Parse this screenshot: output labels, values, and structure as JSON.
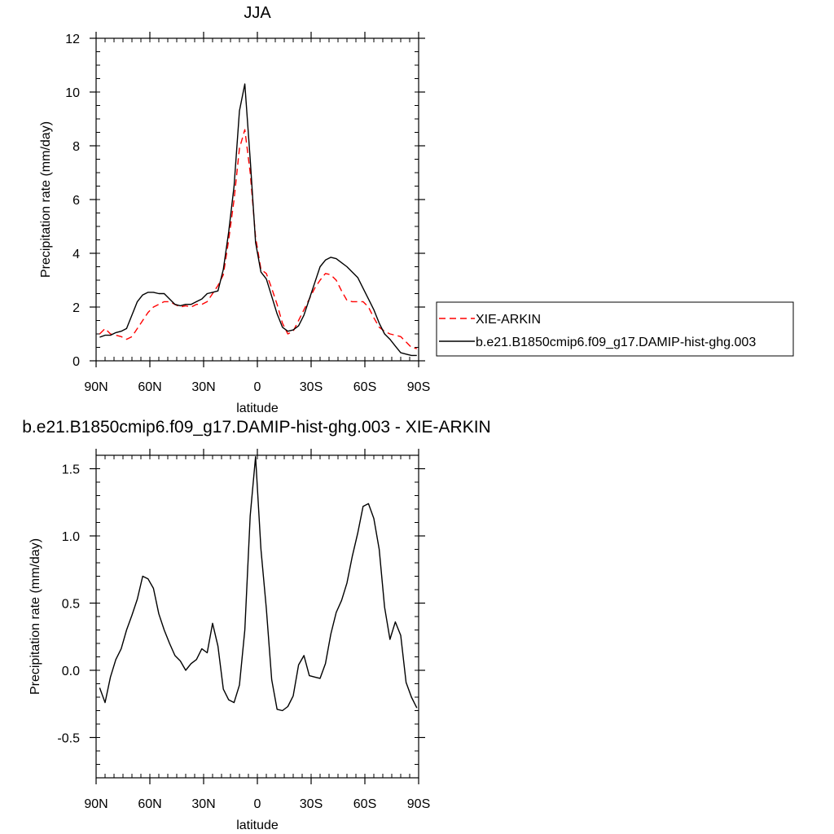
{
  "chart_data": [
    {
      "type": "line",
      "title": "JJA",
      "xlabel": "latitude",
      "ylabel": "Precipitation rate (mm/day)",
      "xlim": [
        90,
        -90
      ],
      "ylim": [
        0,
        12
      ],
      "xticks": [
        {
          "value": 90,
          "label": "90N"
        },
        {
          "value": 60,
          "label": "60N"
        },
        {
          "value": 30,
          "label": "30N"
        },
        {
          "value": 0,
          "label": "0"
        },
        {
          "value": -30,
          "label": "30S"
        },
        {
          "value": -60,
          "label": "60S"
        },
        {
          "value": -90,
          "label": "90S"
        }
      ],
      "yticks": [
        {
          "value": 0,
          "label": "0"
        },
        {
          "value": 2,
          "label": "2"
        },
        {
          "value": 4,
          "label": "4"
        },
        {
          "value": 6,
          "label": "6"
        },
        {
          "value": 8,
          "label": "8"
        },
        {
          "value": 10,
          "label": "10"
        },
        {
          "value": 12,
          "label": "12"
        }
      ],
      "grid": false,
      "legend": "right",
      "x": [
        88,
        85,
        82,
        79,
        76,
        73,
        70,
        67,
        64,
        61,
        58,
        55,
        52,
        49,
        46,
        43,
        40,
        37,
        34,
        31,
        28,
        25,
        22,
        19,
        16,
        13,
        10,
        7,
        4,
        1,
        -2,
        -5,
        -8,
        -11,
        -14,
        -17,
        -20,
        -23,
        -26,
        -29,
        -32,
        -35,
        -38,
        -41,
        -44,
        -47,
        -50,
        -53,
        -56,
        -59,
        -62,
        -65,
        -68,
        -71,
        -74,
        -77,
        -80,
        -83,
        -86,
        -89
      ],
      "series": [
        {
          "name": "XIE-ARKIN",
          "color": "#ff0000",
          "dash": "dashed",
          "values": [
            1.0,
            1.2,
            1.0,
            0.95,
            0.9,
            0.8,
            0.9,
            1.2,
            1.5,
            1.8,
            2.0,
            2.1,
            2.2,
            2.2,
            2.1,
            2.0,
            2.05,
            2.0,
            2.1,
            2.1,
            2.2,
            2.5,
            2.8,
            3.2,
            4.5,
            6.0,
            7.9,
            8.6,
            7.0,
            4.6,
            3.4,
            3.25,
            2.7,
            2.1,
            1.4,
            1.0,
            1.1,
            1.5,
            1.9,
            2.3,
            2.7,
            3.0,
            3.25,
            3.2,
            3.0,
            2.6,
            2.25,
            2.2,
            2.2,
            2.2,
            2.0,
            1.6,
            1.25,
            1.1,
            1.0,
            0.95,
            0.9,
            0.7,
            0.5,
            0.45
          ]
        },
        {
          "name": "b.e21.B1850cmip6.f09_g17.DAMIP-hist-ghg.003",
          "color": "#000000",
          "dash": "solid",
          "values": [
            0.88,
            0.95,
            0.95,
            1.05,
            1.1,
            1.2,
            1.7,
            2.2,
            2.45,
            2.55,
            2.55,
            2.5,
            2.5,
            2.3,
            2.1,
            2.05,
            2.1,
            2.1,
            2.2,
            2.3,
            2.5,
            2.55,
            2.6,
            3.4,
            4.8,
            6.5,
            9.3,
            10.3,
            7.5,
            4.4,
            3.3,
            3.05,
            2.4,
            1.75,
            1.25,
            1.1,
            1.15,
            1.3,
            1.7,
            2.3,
            2.9,
            3.5,
            3.75,
            3.85,
            3.8,
            3.65,
            3.5,
            3.3,
            3.1,
            2.7,
            2.3,
            1.9,
            1.4,
            1.0,
            0.8,
            0.55,
            0.3,
            0.25,
            0.2,
            0.2
          ]
        }
      ]
    },
    {
      "type": "line",
      "title": "b.e21.B1850cmip6.f09_g17.DAMIP-hist-ghg.003 - XIE-ARKIN",
      "xlabel": "latitude",
      "ylabel": "Precipitation rate (mm/day)",
      "xlim": [
        90,
        -90
      ],
      "ylim": [
        -0.8,
        1.6
      ],
      "xticks": [
        {
          "value": 90,
          "label": "90N"
        },
        {
          "value": 60,
          "label": "60N"
        },
        {
          "value": 30,
          "label": "30N"
        },
        {
          "value": 0,
          "label": "0"
        },
        {
          "value": -30,
          "label": "30S"
        },
        {
          "value": -60,
          "label": "60S"
        },
        {
          "value": -90,
          "label": "90S"
        }
      ],
      "yticks": [
        {
          "value": -0.5,
          "label": "-0.5"
        },
        {
          "value": 0.0,
          "label": "0.0"
        },
        {
          "value": 0.5,
          "label": "0.5"
        },
        {
          "value": 1.0,
          "label": "1.0"
        },
        {
          "value": 1.5,
          "label": "1.5"
        }
      ],
      "grid": false,
      "x": [
        88,
        85,
        82,
        79,
        76,
        73,
        70,
        67,
        64,
        61,
        58,
        55,
        52,
        49,
        46,
        43,
        40,
        37,
        34,
        31,
        28,
        25,
        22,
        19,
        16,
        13,
        10,
        7,
        4,
        1,
        -2,
        -5,
        -8,
        -11,
        -14,
        -17,
        -20,
        -23,
        -26,
        -29,
        -32,
        -35,
        -38,
        -41,
        -44,
        -47,
        -50,
        -53,
        -56,
        -59,
        -62,
        -65,
        -68,
        -71,
        -74,
        -77,
        -80,
        -83,
        -86,
        -89
      ],
      "series": [
        {
          "color": "#000000",
          "dash": "solid",
          "values": [
            -0.13,
            -0.24,
            -0.05,
            0.08,
            0.16,
            0.3,
            0.41,
            0.53,
            0.7,
            0.68,
            0.61,
            0.42,
            0.3,
            0.2,
            0.11,
            0.07,
            0.0,
            0.05,
            0.08,
            0.16,
            0.13,
            0.35,
            0.18,
            -0.14,
            -0.22,
            -0.24,
            -0.11,
            0.3,
            1.15,
            1.59,
            0.9,
            0.46,
            -0.07,
            -0.29,
            -0.3,
            -0.27,
            -0.19,
            0.04,
            0.11,
            -0.04,
            -0.05,
            -0.06,
            0.05,
            0.27,
            0.43,
            0.52,
            0.65,
            0.85,
            1.02,
            1.22,
            1.24,
            1.13,
            0.9,
            0.47,
            0.23,
            0.36,
            0.26,
            -0.09,
            -0.2,
            -0.28
          ]
        }
      ]
    }
  ]
}
